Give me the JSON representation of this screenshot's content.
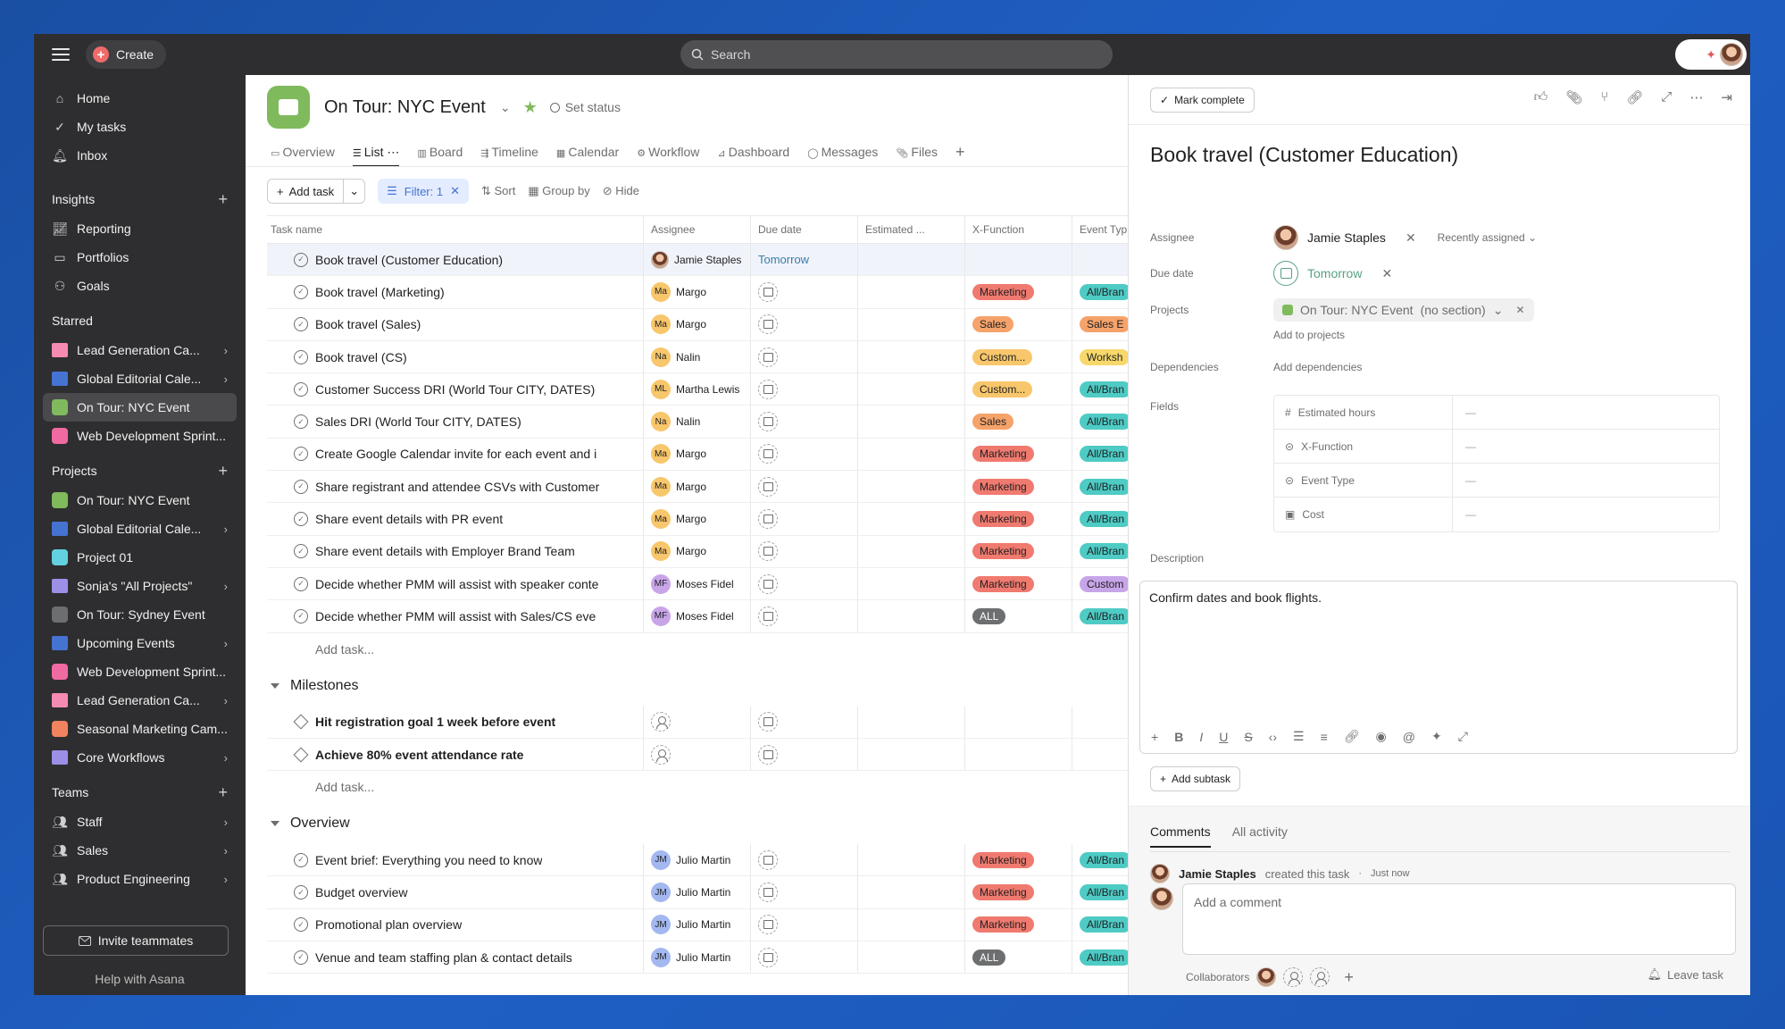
{
  "topbar": {
    "create_label": "Create",
    "search_placeholder": "Search"
  },
  "sidebar": {
    "nav": [
      {
        "label": "Home",
        "icon": "home-icon"
      },
      {
        "label": "My tasks",
        "icon": "check-circle-icon"
      },
      {
        "label": "Inbox",
        "icon": "bell-icon"
      }
    ],
    "insights_title": "Insights",
    "insights": [
      {
        "label": "Reporting",
        "icon": "chart-icon"
      },
      {
        "label": "Portfolios",
        "icon": "folder-icon"
      },
      {
        "label": "Goals",
        "icon": "person-icon"
      }
    ],
    "starred_title": "Starred",
    "starred": [
      {
        "label": "Lead Generation Ca...",
        "color": "#f58bb3",
        "kind": "folder",
        "chev": true
      },
      {
        "label": "Global Editorial Cale...",
        "color": "#4573d2",
        "kind": "folder",
        "chev": true
      },
      {
        "label": "On Tour: NYC Event",
        "color": "#7fba5c",
        "kind": "square",
        "chev": false,
        "active": true
      },
      {
        "label": "Web Development Sprint...",
        "color": "#f06aa2",
        "kind": "square",
        "chev": false
      }
    ],
    "projects_title": "Projects",
    "projects": [
      {
        "label": "On Tour: NYC Event",
        "color": "#7fba5c",
        "kind": "square",
        "chev": false
      },
      {
        "label": "Global Editorial Cale...",
        "color": "#4573d2",
        "kind": "folder",
        "chev": true
      },
      {
        "label": "Project 01",
        "color": "#62d2e0",
        "kind": "square",
        "chev": false
      },
      {
        "label": "Sonja's \"All Projects\"",
        "color": "#9b8fe8",
        "kind": "folder",
        "chev": true
      },
      {
        "label": "On Tour: Sydney Event",
        "color": "#6d6e6f",
        "kind": "square",
        "chev": false
      },
      {
        "label": "Upcoming Events",
        "color": "#4573d2",
        "kind": "folder",
        "chev": true
      },
      {
        "label": "Web Development Sprint...",
        "color": "#f06aa2",
        "kind": "square",
        "chev": false
      },
      {
        "label": "Lead Generation Ca...",
        "color": "#f58bb3",
        "kind": "folder",
        "chev": true
      },
      {
        "label": "Seasonal Marketing Cam...",
        "color": "#f1835e",
        "kind": "square",
        "chev": false
      },
      {
        "label": "Core Workflows",
        "color": "#9b8fe8",
        "kind": "folder",
        "chev": true
      }
    ],
    "teams_title": "Teams",
    "teams": [
      {
        "label": "Staff"
      },
      {
        "label": "Sales"
      },
      {
        "label": "Product Engineering"
      }
    ],
    "invite_label": "Invite teammates",
    "help_label": "Help with Asana"
  },
  "project": {
    "title": "On Tour: NYC Event",
    "set_status": "Set status",
    "tabs": [
      "Overview",
      "List",
      "Board",
      "Timeline",
      "Calendar",
      "Workflow",
      "Dashboard",
      "Messages",
      "Files"
    ],
    "active_tab": "List",
    "toolbar": {
      "add_task": "Add task",
      "filter": "Filter: 1",
      "sort": "Sort",
      "group_by": "Group by",
      "hide": "Hide"
    },
    "columns": [
      "Task name",
      "Assignee",
      "Due date",
      "Estimated ...",
      "X-Function",
      "Event Typ"
    ]
  },
  "tasks": [
    {
      "name": "Book travel (Customer Education)",
      "assignee": "Jamie Staples",
      "initials": "",
      "av_color": "",
      "due": "Tomorrow",
      "xf": "",
      "xf_color": "",
      "evt": "",
      "evt_color": "",
      "selected": true
    },
    {
      "name": "Book travel (Marketing)",
      "assignee": "Margo",
      "initials": "Ma",
      "av_color": "#f8c66b",
      "due": "",
      "xf": "Marketing",
      "xf_color": "#f07a6f",
      "evt": "All/Bran",
      "evt_color": "#4ecbc4"
    },
    {
      "name": "Book travel (Sales)",
      "assignee": "Margo",
      "initials": "Ma",
      "av_color": "#f8c66b",
      "due": "",
      "xf": "Sales",
      "xf_color": "#f5a36a",
      "evt": "Sales E",
      "evt_color": "#f5a36a"
    },
    {
      "name": "Book travel (CS)",
      "assignee": "Nalin",
      "initials": "Na",
      "av_color": "#f8c66b",
      "due": "",
      "xf": "Custom...",
      "xf_color": "#f8c66b",
      "evt": "Worksh",
      "evt_color": "#f8d86b"
    },
    {
      "name": "Customer Success DRI (World Tour CITY, DATES)",
      "assignee": "Martha Lewis",
      "initials": "ML",
      "av_color": "#f8c66b",
      "due": "",
      "xf": "Custom...",
      "xf_color": "#f8c66b",
      "evt": "All/Bran",
      "evt_color": "#4ecbc4"
    },
    {
      "name": "Sales DRI (World Tour CITY, DATES)",
      "assignee": "Nalin",
      "initials": "Na",
      "av_color": "#f8c66b",
      "due": "",
      "xf": "Sales",
      "xf_color": "#f5a36a",
      "evt": "All/Bran",
      "evt_color": "#4ecbc4"
    },
    {
      "name": "Create Google Calendar invite for each event and i",
      "assignee": "Margo",
      "initials": "Ma",
      "av_color": "#f8c66b",
      "due": "",
      "xf": "Marketing",
      "xf_color": "#f07a6f",
      "evt": "All/Bran",
      "evt_color": "#4ecbc4"
    },
    {
      "name": "Share registrant and attendee CSVs with Customer",
      "assignee": "Margo",
      "initials": "Ma",
      "av_color": "#f8c66b",
      "due": "",
      "xf": "Marketing",
      "xf_color": "#f07a6f",
      "evt": "All/Bran",
      "evt_color": "#4ecbc4"
    },
    {
      "name": "Share event details with PR event",
      "assignee": "Margo",
      "initials": "Ma",
      "av_color": "#f8c66b",
      "due": "",
      "xf": "Marketing",
      "xf_color": "#f07a6f",
      "evt": "All/Bran",
      "evt_color": "#4ecbc4"
    },
    {
      "name": "Share event details with Employer Brand Team",
      "assignee": "Margo",
      "initials": "Ma",
      "av_color": "#f8c66b",
      "due": "",
      "xf": "Marketing",
      "xf_color": "#f07a6f",
      "evt": "All/Bran",
      "evt_color": "#4ecbc4"
    },
    {
      "name": "Decide whether PMM will assist with speaker conte",
      "assignee": "Moses Fidel",
      "initials": "MF",
      "av_color": "#c8a5e8",
      "due": "",
      "xf": "Marketing",
      "xf_color": "#f07a6f",
      "evt": "Custom",
      "evt_color": "#c8a5e8"
    },
    {
      "name": "Decide whether PMM will assist  with Sales/CS eve",
      "assignee": "Moses Fidel",
      "initials": "MF",
      "av_color": "#c8a5e8",
      "due": "",
      "xf": "ALL",
      "xf_color": "#6d6e6f",
      "evt": "All/Bran",
      "evt_color": "#4ecbc4"
    }
  ],
  "add_task_label": "Add task...",
  "milestones_title": "Milestones",
  "milestones": [
    {
      "name": "Hit registration goal 1 week before event"
    },
    {
      "name": "Achieve 80% event attendance rate"
    }
  ],
  "overview_title": "Overview",
  "overview_tasks": [
    {
      "name": "Event brief: Everything you need to know",
      "assignee": "Julio Martin",
      "initials": "JM",
      "av_color": "#a3b8f0",
      "xf": "Marketing",
      "xf_color": "#f07a6f",
      "evt": "All/Bran",
      "evt_color": "#4ecbc4"
    },
    {
      "name": "Budget overview",
      "assignee": "Julio Martin",
      "initials": "JM",
      "av_color": "#a3b8f0",
      "xf": "Marketing",
      "xf_color": "#f07a6f",
      "evt": "All/Bran",
      "evt_color": "#4ecbc4"
    },
    {
      "name": "Promotional plan overview",
      "assignee": "Julio Martin",
      "initials": "JM",
      "av_color": "#a3b8f0",
      "xf": "Marketing",
      "xf_color": "#f07a6f",
      "evt": "All/Bran",
      "evt_color": "#4ecbc4"
    },
    {
      "name": "Venue and team staffing plan & contact details",
      "assignee": "Julio Martin",
      "initials": "JM",
      "av_color": "#a3b8f0",
      "xf": "ALL",
      "xf_color": "#6d6e6f",
      "evt": "All/Bran",
      "evt_color": "#4ecbc4"
    }
  ],
  "detail": {
    "mark_complete": "Mark complete",
    "title": "Book travel (Customer Education)",
    "assignee_label": "Assignee",
    "assignee": "Jamie Staples",
    "recently_assigned": "Recently assigned",
    "due_label": "Due date",
    "due": "Tomorrow",
    "projects_label": "Projects",
    "project": "On Tour: NYC Event",
    "section": "(no section)",
    "add_to_projects": "Add to projects",
    "dependencies_label": "Dependencies",
    "add_dependencies": "Add dependencies",
    "fields_label": "Fields",
    "fields": [
      {
        "name": "Estimated hours",
        "value": "—",
        "icon": "hash-icon"
      },
      {
        "name": "X-Function",
        "value": "—",
        "icon": "select-icon"
      },
      {
        "name": "Event Type",
        "value": "—",
        "icon": "select-icon"
      },
      {
        "name": "Cost",
        "value": "—",
        "icon": "currency-icon"
      }
    ],
    "description_label": "Description",
    "description": "Confirm dates and book flights.",
    "add_subtask": "Add subtask",
    "comments_tab": "Comments",
    "activity_tab": "All activity",
    "activity_user": "Jamie Staples",
    "activity_text": "created this task",
    "activity_time": "Just now",
    "comment_placeholder": "Add a comment",
    "collaborators": "Collaborators",
    "leave_task": "Leave task"
  }
}
